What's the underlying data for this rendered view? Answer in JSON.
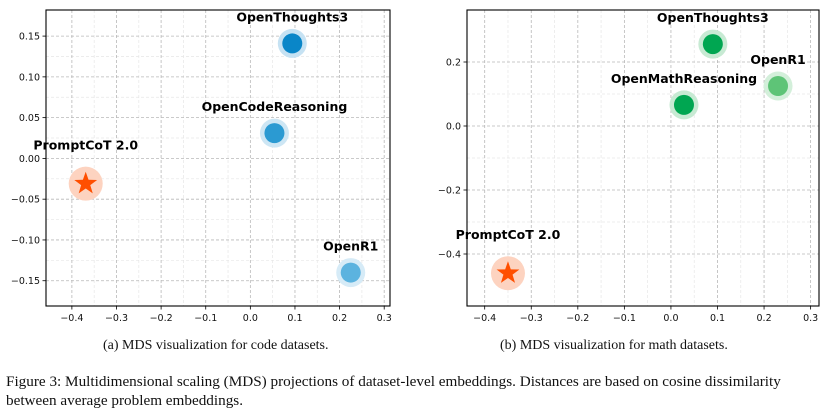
{
  "figure_caption": "Figure 3: Multidimensional scaling (MDS) projections of dataset-level embeddings. Distances are based on cosine dissimilarity between average problem embeddings.",
  "chart_data": [
    {
      "id": "code",
      "type": "scatter",
      "caption": "(a) MDS visualization for code datasets.",
      "title": "",
      "xlabel": "",
      "ylabel": "",
      "xlim": [
        -0.458,
        0.313
      ],
      "ylim": [
        -0.181,
        0.182
      ],
      "xticks": [
        -0.4,
        -0.3,
        -0.2,
        -0.1,
        0.0,
        0.1,
        0.2,
        0.3
      ],
      "xtick_labels": [
        "−0.4",
        "−0.3",
        "−0.2",
        "−0.1",
        "0.0",
        "0.1",
        "0.2",
        "0.3"
      ],
      "yticks": [
        0.15,
        0.1,
        0.05,
        0.0,
        -0.05,
        -0.1,
        -0.15
      ],
      "ytick_labels": [
        "0.15",
        "0.10",
        "0.05",
        "0.00",
        "−0.05",
        "−0.10",
        "−0.15"
      ],
      "grid": true,
      "legend": "none",
      "points": [
        {
          "name": "PromptCoT 2.0",
          "x": -0.369,
          "y": -0.031,
          "marker": "star",
          "color": "#ff4f00",
          "halo": "#fdd3c0"
        },
        {
          "name": "OpenThoughts3",
          "x": 0.094,
          "y": 0.141,
          "marker": "circle",
          "color": "#0a86c8",
          "halo": "#c6e2f3"
        },
        {
          "name": "OpenCodeReasoning",
          "x": 0.054,
          "y": 0.031,
          "marker": "circle",
          "color": "#2b9ad2",
          "halo": "#cde6f4"
        },
        {
          "name": "OpenR1",
          "x": 0.225,
          "y": -0.14,
          "marker": "circle",
          "color": "#5cb3df",
          "halo": "#d6ebf7"
        }
      ]
    },
    {
      "id": "math",
      "type": "scatter",
      "caption": "(b) MDS visualization for math datasets.",
      "title": "",
      "xlabel": "",
      "ylabel": "",
      "xlim": [
        -0.438,
        0.318
      ],
      "ylim": [
        -0.5625,
        0.3625
      ],
      "xticks": [
        -0.4,
        -0.3,
        -0.2,
        -0.1,
        0.0,
        0.1,
        0.2,
        0.3
      ],
      "xtick_labels": [
        "−0.4",
        "−0.3",
        "−0.2",
        "−0.1",
        "0.0",
        "0.1",
        "0.2",
        "0.3"
      ],
      "yticks": [
        0.2,
        0.0,
        -0.2,
        -0.4
      ],
      "ytick_labels": [
        "0.2",
        "0.0",
        "−0.2",
        "−0.4"
      ],
      "grid": true,
      "legend": "none",
      "points": [
        {
          "name": "PromptCoT 2.0",
          "x": -0.35,
          "y": -0.46,
          "marker": "star",
          "color": "#ff4f00",
          "halo": "#fdd3c0"
        },
        {
          "name": "OpenThoughts3",
          "x": 0.09,
          "y": 0.256,
          "marker": "circle",
          "color": "#00a651",
          "halo": "#c7ead3"
        },
        {
          "name": "OpenMathReasoning",
          "x": 0.028,
          "y": 0.066,
          "marker": "circle",
          "color": "#00a651",
          "halo": "#c7ead3"
        },
        {
          "name": "OpenR1",
          "x": 0.23,
          "y": 0.125,
          "marker": "circle",
          "color": "#5ec477",
          "halo": "#d3efda"
        }
      ]
    }
  ]
}
